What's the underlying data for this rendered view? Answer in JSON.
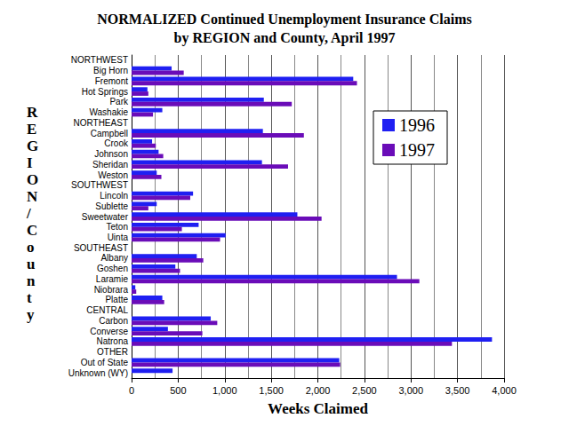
{
  "chart_data": {
    "type": "bar",
    "orientation": "horizontal",
    "title": "NORMALIZED Continued Unemployment Insurance Claims\nby REGION and County, April 1997",
    "xlabel": "Weeks Claimed",
    "ylabel": "REGION/County",
    "categories": [
      "NORTHWEST",
      "Big Horn",
      "Fremont",
      "Hot Springs",
      "Park",
      "Washakie",
      "NORTHEAST",
      "Campbell",
      "Crook",
      "Johnson",
      "Sheridan",
      "Weston",
      "SOUTHWEST",
      "Lincoln",
      "Sublette",
      "Sweetwater",
      "Teton",
      "Uinta",
      "SOUTHEAST",
      "Albany",
      "Goshen",
      "Laramie",
      "Niobrara",
      "Platte",
      "CENTRAL",
      "Carbon",
      "Converse",
      "Natrona",
      "OTHER",
      "Out of State",
      "Unknown (WY)"
    ],
    "series": [
      {
        "name": "1996",
        "color": "#1f1ff2",
        "values": [
          null,
          430,
          2380,
          170,
          1420,
          330,
          null,
          1410,
          220,
          290,
          1400,
          270,
          null,
          660,
          270,
          1780,
          720,
          1010,
          null,
          700,
          470,
          2850,
          40,
          330,
          null,
          850,
          390,
          3870,
          null,
          2230,
          440
        ]
      },
      {
        "name": "1997",
        "color": "#6a0cb8",
        "values": [
          null,
          560,
          2420,
          180,
          1720,
          230,
          null,
          1850,
          260,
          340,
          1680,
          320,
          null,
          630,
          180,
          2040,
          540,
          950,
          null,
          770,
          520,
          3090,
          50,
          350,
          null,
          920,
          760,
          3440,
          null,
          2240,
          null
        ]
      }
    ],
    "xlim": [
      0,
      4000
    ],
    "xticks": [
      0,
      500,
      {
        "value": 1000,
        "label": "1,000"
      },
      {
        "value": 1500,
        "label": "1,500"
      },
      {
        "value": 2000,
        "label": "2,000"
      },
      {
        "value": 2500,
        "label": "2,500"
      },
      {
        "value": 3000,
        "label": "3,000"
      },
      {
        "value": 3500,
        "label": "3,500"
      },
      {
        "value": 4000,
        "label": "4,000"
      }
    ],
    "grid": true,
    "legend": "right"
  }
}
